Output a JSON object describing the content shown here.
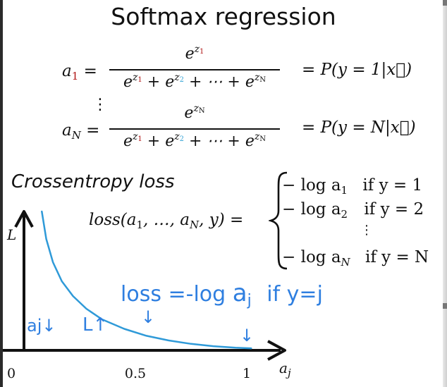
{
  "title": "Softmax regression",
  "softmax": {
    "row1": {
      "lhs_base": "a",
      "lhs_sub": "1",
      "numerator_exp_base": "z",
      "numerator_exp_sub": "1",
      "rhs": "= P(y = 1|x⃗)"
    },
    "rowN": {
      "lhs_base": "a",
      "lhs_sub": "N",
      "numerator_exp_base": "z",
      "numerator_exp_sub": "N",
      "rhs": "= P(y = N|x⃗)"
    },
    "denominator": {
      "term1_sub": "1",
      "term2_sub": "2",
      "termN_sub": "N",
      "plus": "+",
      "ellipsis": "⋯"
    },
    "equals": "=",
    "vdots": "⋮"
  },
  "crossentropy": {
    "heading": "Crossentropy loss",
    "loss_lhs": "loss(a",
    "loss_lhs_rest": ", …, a",
    "loss_lhs_end": ", y) =",
    "cases": [
      {
        "expr": "− log a",
        "sub": "1",
        "cond": "if y = 1"
      },
      {
        "expr": "− log a",
        "sub": "2",
        "cond": "if y = 2"
      },
      {
        "expr": "− log a",
        "sub": "N",
        "cond": "if y = N"
      }
    ],
    "vdots": "⋮"
  },
  "handwriting": {
    "loss_eq": "loss =-log",
    "loss_aj": "a",
    "loss_j": "j",
    "loss_if": "if y=j",
    "aj_down": "aj↓",
    "L_up": "L↑",
    "arrow1": "↓",
    "arrow2": "↓"
  },
  "chart_data": {
    "type": "line",
    "title": "",
    "xlabel": "a_j",
    "ylabel": "L",
    "xlim": [
      0,
      1.05
    ],
    "x_ticks": [
      "0",
      "0.5",
      "1"
    ],
    "x_tick_values": [
      0,
      0.5,
      1
    ],
    "series": [
      {
        "x": [
          0.08,
          0.1,
          0.13,
          0.17,
          0.22,
          0.28,
          0.35,
          0.45,
          0.55,
          0.65,
          0.75,
          0.85,
          0.95,
          1.02
        ],
        "y": [
          6.5,
          5.2,
          4.1,
          3.2,
          2.5,
          1.9,
          1.4,
          0.95,
          0.62,
          0.4,
          0.24,
          0.13,
          0.06,
          0.03
        ]
      }
    ],
    "colors": {
      "curve": "#2f9ad8",
      "axes": "#111111",
      "hand": "#2f7fe0"
    }
  }
}
